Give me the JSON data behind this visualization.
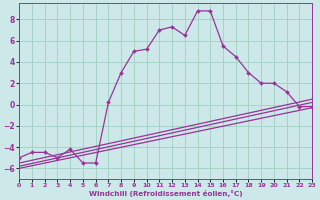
{
  "xlabel": "Windchill (Refroidissement éolien,°C)",
  "xlim": [
    0,
    23
  ],
  "ylim": [
    -7,
    9.5
  ],
  "yticks": [
    -6,
    -4,
    -2,
    0,
    2,
    4,
    6,
    8
  ],
  "xticks": [
    0,
    1,
    2,
    3,
    4,
    5,
    6,
    7,
    8,
    9,
    10,
    11,
    12,
    13,
    14,
    15,
    16,
    17,
    18,
    19,
    20,
    21,
    22,
    23
  ],
  "background_color": "#cce8e8",
  "line_color": "#993399",
  "grid_color": "#99ccbb",
  "line1_x": [
    0,
    23
  ],
  "line1_y": [
    -5.5,
    0.5
  ],
  "line2_x": [
    0,
    23
  ],
  "line2_y": [
    -5.8,
    0.2
  ],
  "line3_x": [
    0,
    23
  ],
  "line3_y": [
    -6.0,
    -0.3
  ],
  "curve_x": [
    0,
    1,
    2,
    3,
    4,
    5,
    6,
    7,
    8,
    9,
    10,
    11,
    12,
    13,
    14,
    15,
    16,
    17,
    18,
    19,
    20,
    21,
    22,
    23
  ],
  "curve_y": [
    -5.0,
    -4.5,
    -4.5,
    -5.0,
    -4.2,
    -5.5,
    -5.5,
    0.2,
    3.0,
    5.0,
    5.2,
    7.0,
    7.3,
    6.5,
    8.8,
    8.8,
    5.5,
    4.5,
    3.0,
    2.0,
    2.0,
    1.2,
    -0.2,
    -0.2
  ]
}
